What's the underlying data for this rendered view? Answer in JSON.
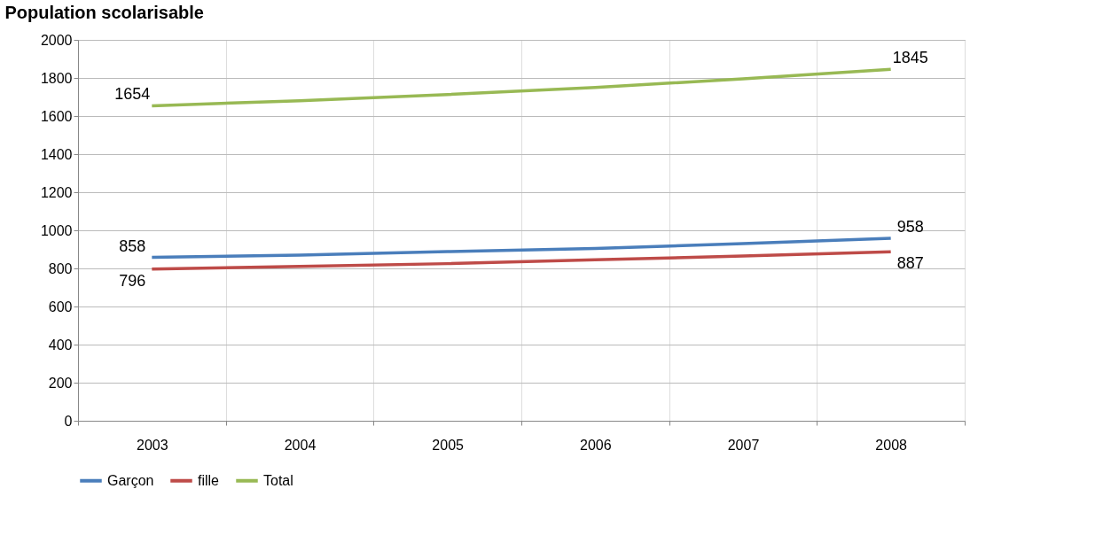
{
  "chart_data": {
    "type": "line",
    "title": "Population scolarisable",
    "categories": [
      "2003",
      "2004",
      "2005",
      "2006",
      "2007",
      "2008"
    ],
    "series": [
      {
        "name": "Garçon",
        "color": "#4a7ebb",
        "values": [
          858,
          870,
          888,
          905,
          930,
          958
        ],
        "value_labels": [
          "858",
          null,
          null,
          null,
          null,
          "958"
        ]
      },
      {
        "name": "fille",
        "color": "#be4b48",
        "values": [
          796,
          810,
          825,
          845,
          865,
          887
        ],
        "value_labels": [
          "796",
          null,
          null,
          null,
          null,
          "887"
        ]
      },
      {
        "name": "Total",
        "color": "#98b954",
        "values": [
          1654,
          1680,
          1713,
          1750,
          1795,
          1845
        ],
        "value_labels": [
          "1654",
          null,
          null,
          null,
          null,
          "1845"
        ]
      }
    ],
    "ylim": [
      0,
      2000
    ],
    "yticks": [
      0,
      200,
      400,
      600,
      800,
      1000,
      1200,
      1400,
      1600,
      1800,
      2000
    ],
    "grid": true,
    "legend": "bottom",
    "marker": "none",
    "line_style": "solid"
  }
}
